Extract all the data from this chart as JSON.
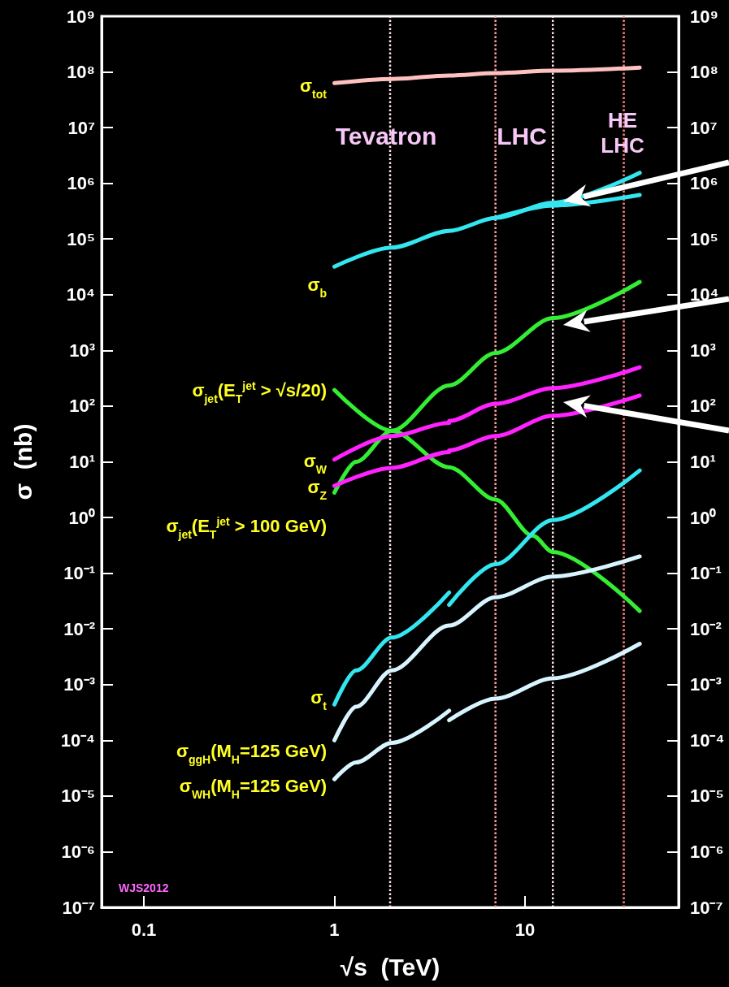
{
  "chart_data": {
    "type": "line",
    "xlabel": "√s  (TeV)",
    "ylabel": "σ  (nb)",
    "log": "xy",
    "marker": "none",
    "line_style": "solid",
    "xlim": [
      0.06,
      64
    ],
    "xticks": [
      0.1,
      1,
      10
    ],
    "ylim": [
      1e-07,
      1000000000.0
    ],
    "yticks": [
      {
        "value": 1e-07,
        "label": "10⁻⁷"
      },
      {
        "value": 1e-06,
        "label": "10⁻⁶"
      },
      {
        "value": 1e-05,
        "label": "10⁻⁵"
      },
      {
        "value": 0.0001,
        "label": "10⁻⁴"
      },
      {
        "value": 0.001,
        "label": "10⁻³"
      },
      {
        "value": 0.01,
        "label": "10⁻²"
      },
      {
        "value": 0.1,
        "label": "10⁻¹"
      },
      {
        "value": 1,
        "label": "10⁰"
      },
      {
        "value": 10,
        "label": "10¹"
      },
      {
        "value": 100,
        "label": "10²"
      },
      {
        "value": 1000,
        "label": "10³"
      },
      {
        "value": 10000.0,
        "label": "10⁴"
      },
      {
        "value": 100000.0,
        "label": "10⁵"
      },
      {
        "value": 1000000.0,
        "label": "10⁶"
      },
      {
        "value": 10000000.0,
        "label": "10⁷"
      },
      {
        "value": 100000000.0,
        "label": "10⁸"
      },
      {
        "value": 1000000000.0,
        "label": "10⁹"
      }
    ],
    "series": [
      {
        "color": "#ffc0c0",
        "x": [
          1,
          2,
          4,
          7,
          14,
          40
        ],
        "values": [
          63000000.0,
          75000000.0,
          86000000.0,
          95000000.0,
          105000000.0,
          120000000.0
        ]
      },
      {
        "color": "#33e6f0",
        "x": [
          1,
          2,
          4,
          7,
          14,
          40
        ],
        "values": [
          32000.0,
          70000.0,
          140000.0,
          240000.0,
          450000.0,
          1550000.0
        ]
      },
      {
        "color": "#33e6f0",
        "x": [
          7,
          14,
          40
        ],
        "values": [
          240000.0,
          400000.0,
          620000.0
        ]
      },
      {
        "color": "#33ee33",
        "x": [
          1,
          2,
          4,
          7,
          11,
          14,
          40
        ],
        "values": [
          195,
          36,
          8,
          2.1,
          0.47,
          0.24,
          0.021
        ]
      },
      {
        "color": "#33ee33",
        "x": [
          1,
          1.3,
          2,
          4,
          7,
          14,
          40
        ],
        "values": [
          2.8,
          10,
          36,
          235,
          900,
          3800,
          17000
        ]
      },
      {
        "color": "#ff22ff",
        "x": [
          1,
          2,
          4,
          4,
          7,
          14,
          40
        ],
        "values": [
          11,
          29,
          50,
          54,
          110,
          210,
          500
        ]
      },
      {
        "color": "#ff22ff",
        "x": [
          1,
          2,
          4,
          4,
          7,
          14,
          40
        ],
        "values": [
          3.7,
          7.8,
          15,
          16,
          29,
          67,
          155
        ]
      },
      {
        "color": "#33e6f0",
        "x": [
          1,
          1.3,
          2,
          4
        ],
        "values": [
          0.00044,
          0.0018,
          0.007,
          0.045
        ]
      },
      {
        "color": "#33e6f0",
        "x": [
          4,
          7,
          14,
          40
        ],
        "values": [
          0.027,
          0.145,
          0.9,
          7
        ]
      },
      {
        "color": "#d8f4ff",
        "x": [
          1,
          1.3,
          2,
          4,
          7,
          14,
          40
        ],
        "values": [
          0.0001,
          0.0004,
          0.0018,
          0.0115,
          0.037,
          0.087,
          0.2
        ]
      },
      {
        "color": "#d8f4ff",
        "x": [
          1,
          1.3,
          2,
          4
        ],
        "values": [
          2e-05,
          4e-05,
          9e-05,
          0.00034
        ]
      },
      {
        "color": "#d8f4ff",
        "x": [
          4,
          7,
          14,
          40
        ],
        "values": [
          0.00023,
          0.00056,
          0.0013,
          0.0054
        ]
      }
    ],
    "ref_lines": [
      {
        "axis": "x",
        "value": 1.96,
        "color": "#ffe0e0",
        "line_style": "dotted"
      },
      {
        "axis": "x",
        "value": 7,
        "color": "#ffa0a0",
        "line_style": "dotted"
      },
      {
        "axis": "x",
        "value": 14,
        "color": "#ffe8e8",
        "line_style": "dotted"
      },
      {
        "axis": "x",
        "value": 33,
        "color": "#ff8080",
        "line_style": "dotted"
      }
    ],
    "annotations": [
      "σ$_{tot}$",
      "σ$_{b}$",
      "σ$_{jet}$(E$_{T}$$^{jet}$ > √s/20)",
      "σ$_{W}$",
      "σ$_{Z}$",
      "σ$_{jet}$(E$_{T}$$^{jet}$ > 100 GeV)",
      "σ$_{t}$",
      "σ$_{ggH}$(M$_{H}$=125 GeV)",
      "σ$_{WH}$(M$_{H}$=125 GeV)",
      "Tevatron",
      "LHC",
      "HE LHC",
      "WJS2012"
    ]
  }
}
